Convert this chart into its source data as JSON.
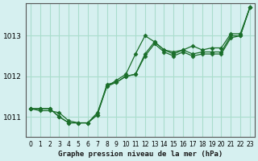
{
  "title": "Graphe pression niveau de la mer (hPa)",
  "background_color": "#d6f0f0",
  "grid_color": "#aaddcc",
  "line_color": "#1a6e2a",
  "marker_color": "#1a6e2a",
  "ylabel_ticks": [
    1011,
    1012,
    1013
  ],
  "xlim": [
    -0.5,
    23.5
  ],
  "ylim": [
    1010.5,
    1013.8
  ],
  "xlabel": "Graphe pression niveau de la mer (hPa)",
  "series1": {
    "x": [
      0,
      1,
      2,
      3,
      4,
      5,
      6,
      7,
      8,
      9,
      10,
      11,
      12,
      13,
      14,
      15,
      16,
      17,
      18,
      19,
      20,
      21,
      22,
      23
    ],
    "y": [
      1011.2,
      1011.2,
      1011.2,
      1011.0,
      1010.85,
      1010.85,
      1010.85,
      1011.05,
      1011.8,
      1011.85,
      1012.0,
      1012.05,
      1012.55,
      1012.85,
      1012.65,
      1012.55,
      1012.65,
      1012.55,
      1012.6,
      1012.6,
      1012.6,
      1013.0,
      1013.0,
      1013.7
    ]
  },
  "series2": {
    "x": [
      0,
      1,
      2,
      3,
      4,
      5,
      6,
      7,
      8,
      9,
      10,
      11,
      12,
      13,
      14,
      15,
      16,
      17,
      18,
      19,
      20,
      21,
      22,
      23
    ],
    "y": [
      1011.2,
      1011.2,
      1011.2,
      1011.0,
      1010.85,
      1010.85,
      1010.85,
      1011.05,
      1011.75,
      1011.85,
      1012.0,
      1012.05,
      1012.5,
      1012.8,
      1012.6,
      1012.5,
      1012.6,
      1012.5,
      1012.55,
      1012.55,
      1012.55,
      1012.95,
      1013.0,
      1013.7
    ]
  },
  "series3": {
    "x": [
      0,
      1,
      2,
      3,
      4,
      5,
      6,
      7,
      8,
      9,
      10,
      11,
      12,
      13,
      14,
      15,
      16,
      17,
      18,
      19,
      20,
      21,
      22,
      23
    ],
    "y": [
      1011.2,
      1011.15,
      1011.15,
      1011.1,
      1010.9,
      1010.85,
      1010.85,
      1011.1,
      1011.75,
      1011.9,
      1012.05,
      1012.55,
      1013.0,
      1012.85,
      1012.65,
      1012.6,
      1012.65,
      1012.75,
      1012.65,
      1012.7,
      1012.7,
      1013.05,
      1013.05,
      1013.7
    ]
  }
}
